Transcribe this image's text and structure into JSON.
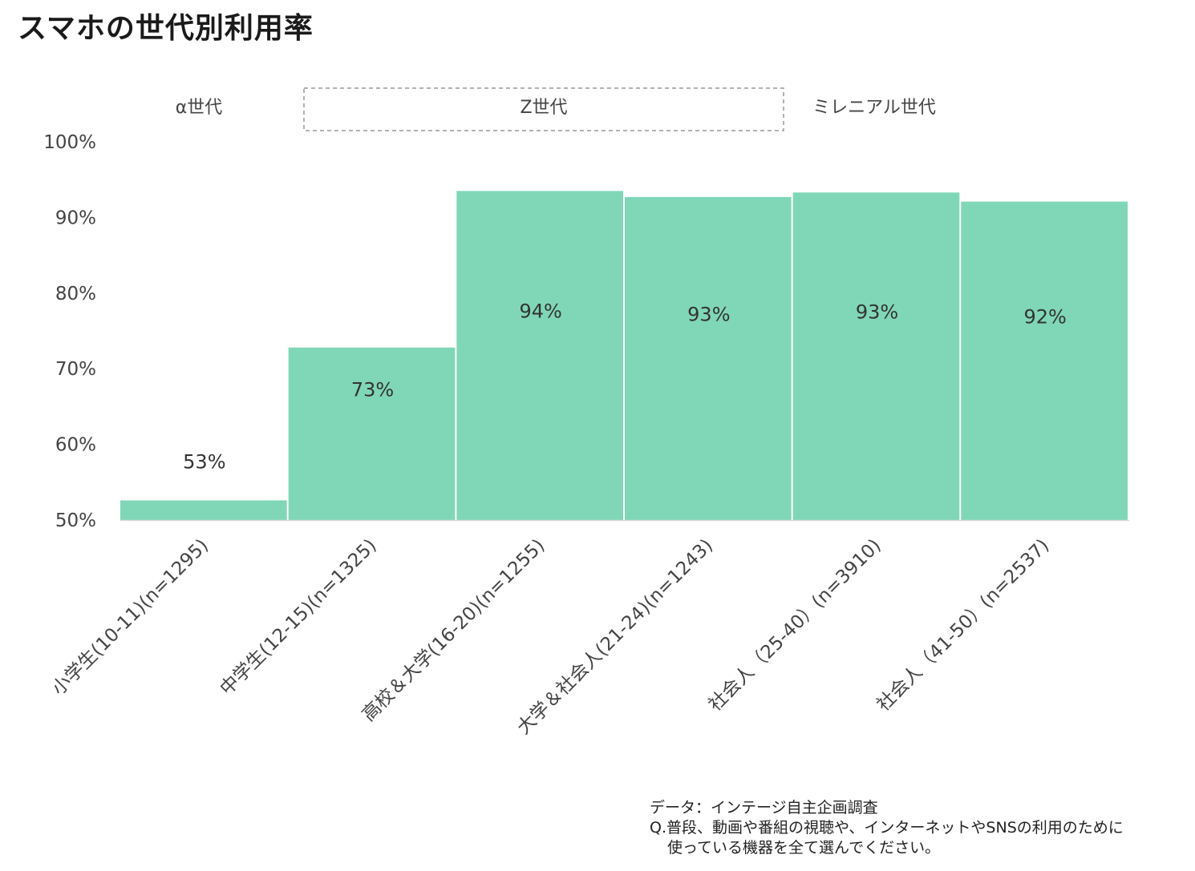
{
  "title": "スマホの世代別利用率",
  "generations": [
    {
      "label": "α世代",
      "boxed": false
    },
    {
      "label": "Z世代",
      "boxed": true
    },
    {
      "label": "ミレニアル世代",
      "boxed": false
    }
  ],
  "note": {
    "source": "データ：インテージ自主企画調査",
    "question_line1": "Q.普段、動画や番組の視聴や、インターネットやSNSの利用のために",
    "question_line2": "使っている機器を全て選んでください。"
  },
  "chart_data": {
    "type": "bar",
    "title": "スマホの世代別利用率",
    "categories": [
      "小学生(10-11)(n=1295)",
      "中学生(12-15)(n=1325)",
      "高校＆大学(16-20)(n=1255)",
      "大学＆社会人(21-24)(n=1243)",
      "社会人（25-40）(n=3910)",
      "社会人（41-50）(n=2537)"
    ],
    "values": [
      52.6,
      72.8,
      93.5,
      92.7,
      93.3,
      92.1
    ],
    "value_labels": [
      "53%",
      "73%",
      "94%",
      "93%",
      "93%",
      "92%"
    ],
    "yticks": [
      "50%",
      "60%",
      "70%",
      "80%",
      "90%",
      "100%"
    ],
    "ytick_values": [
      50,
      60,
      70,
      80,
      90,
      100
    ],
    "ylim": [
      50,
      100
    ],
    "grid": false,
    "legend": "none",
    "bar_color": "#80D7B8"
  }
}
